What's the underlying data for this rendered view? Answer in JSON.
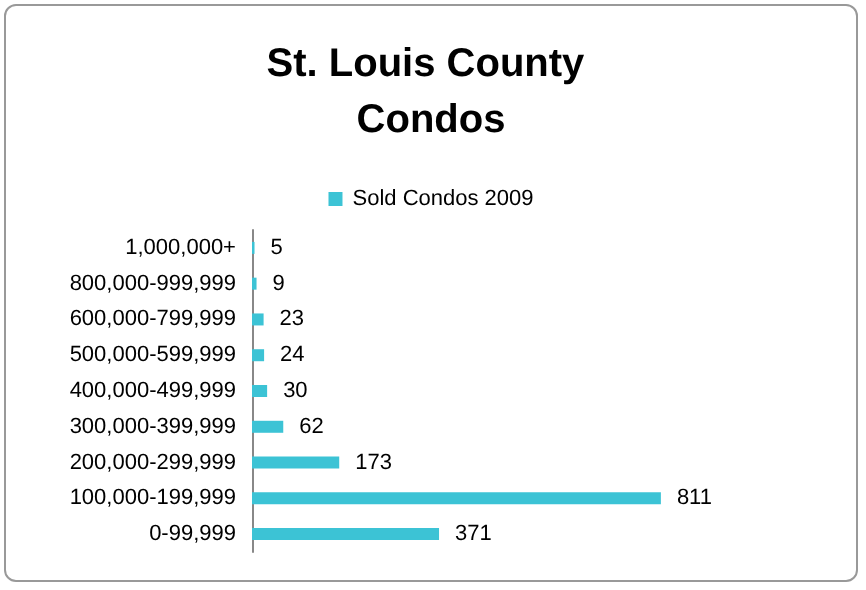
{
  "chart_data": {
    "type": "bar",
    "title": "St. Louis County Condos",
    "orientation": "horizontal",
    "categories": [
      "1,000,000+",
      "800,000-999,999",
      "600,000-799,999",
      "500,000-599,999",
      "400,000-499,999",
      "300,000-399,999",
      "200,000-299,999",
      "100,000-199,999",
      "0-99,999"
    ],
    "series": [
      {
        "name": "Sold Condos 2009",
        "color": "#3cc3d5",
        "values": [
          5,
          9,
          23,
          24,
          30,
          62,
          173,
          811,
          371
        ]
      }
    ],
    "data_labels": true,
    "legend": "top"
  }
}
